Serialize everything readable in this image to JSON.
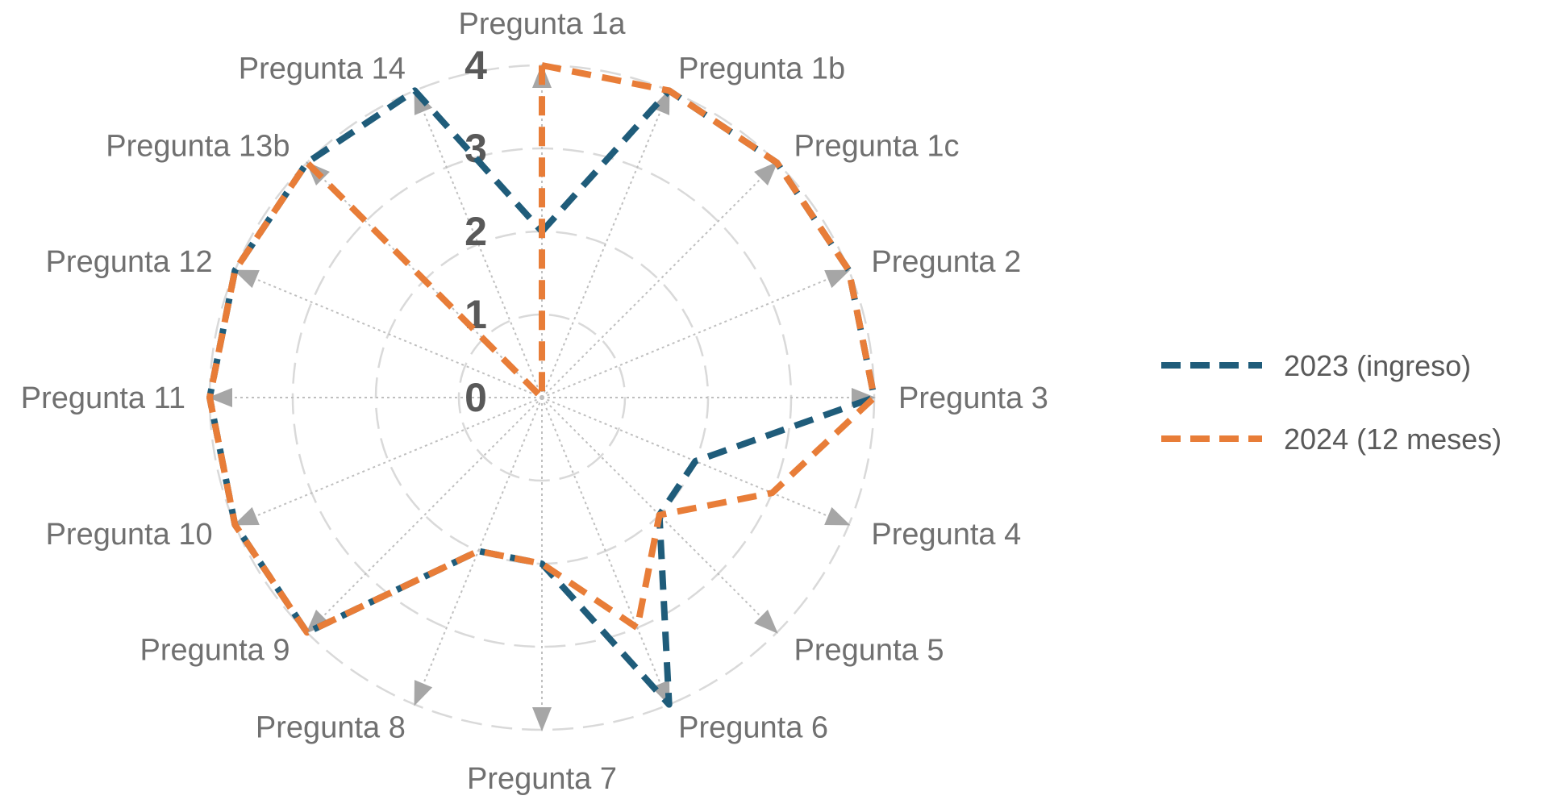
{
  "chart_data": {
    "type": "radar",
    "title": "",
    "categories": [
      "Pregunta 1a",
      "Pregunta 1b",
      "Pregunta 1c",
      "Pregunta 2",
      "Pregunta 3",
      "Pregunta 4",
      "Pregunta 5",
      "Pregunta 6",
      "Pregunta 7",
      "Pregunta 8",
      "Pregunta 9",
      "Pregunta 10",
      "Pregunta 11",
      "Pregunta 12",
      "Pregunta 13b",
      "Pregunta 14"
    ],
    "ticks": [
      0,
      1,
      2,
      3,
      4
    ],
    "rlim": [
      0,
      4
    ],
    "grid": true,
    "legend_position": "right",
    "series": [
      {
        "name": "2023 (ingreso)",
        "color": "#1F5C7A",
        "values": [
          2,
          4,
          4,
          4,
          4,
          2,
          2,
          4,
          2,
          2,
          4,
          4,
          4,
          4,
          4,
          4
        ]
      },
      {
        "name": "2024 (12 meses)",
        "color": "#E87D38",
        "values": [
          4,
          4,
          4,
          4,
          4,
          3,
          2,
          3,
          2,
          2,
          4,
          4,
          4,
          4,
          4,
          0
        ]
      }
    ]
  }
}
